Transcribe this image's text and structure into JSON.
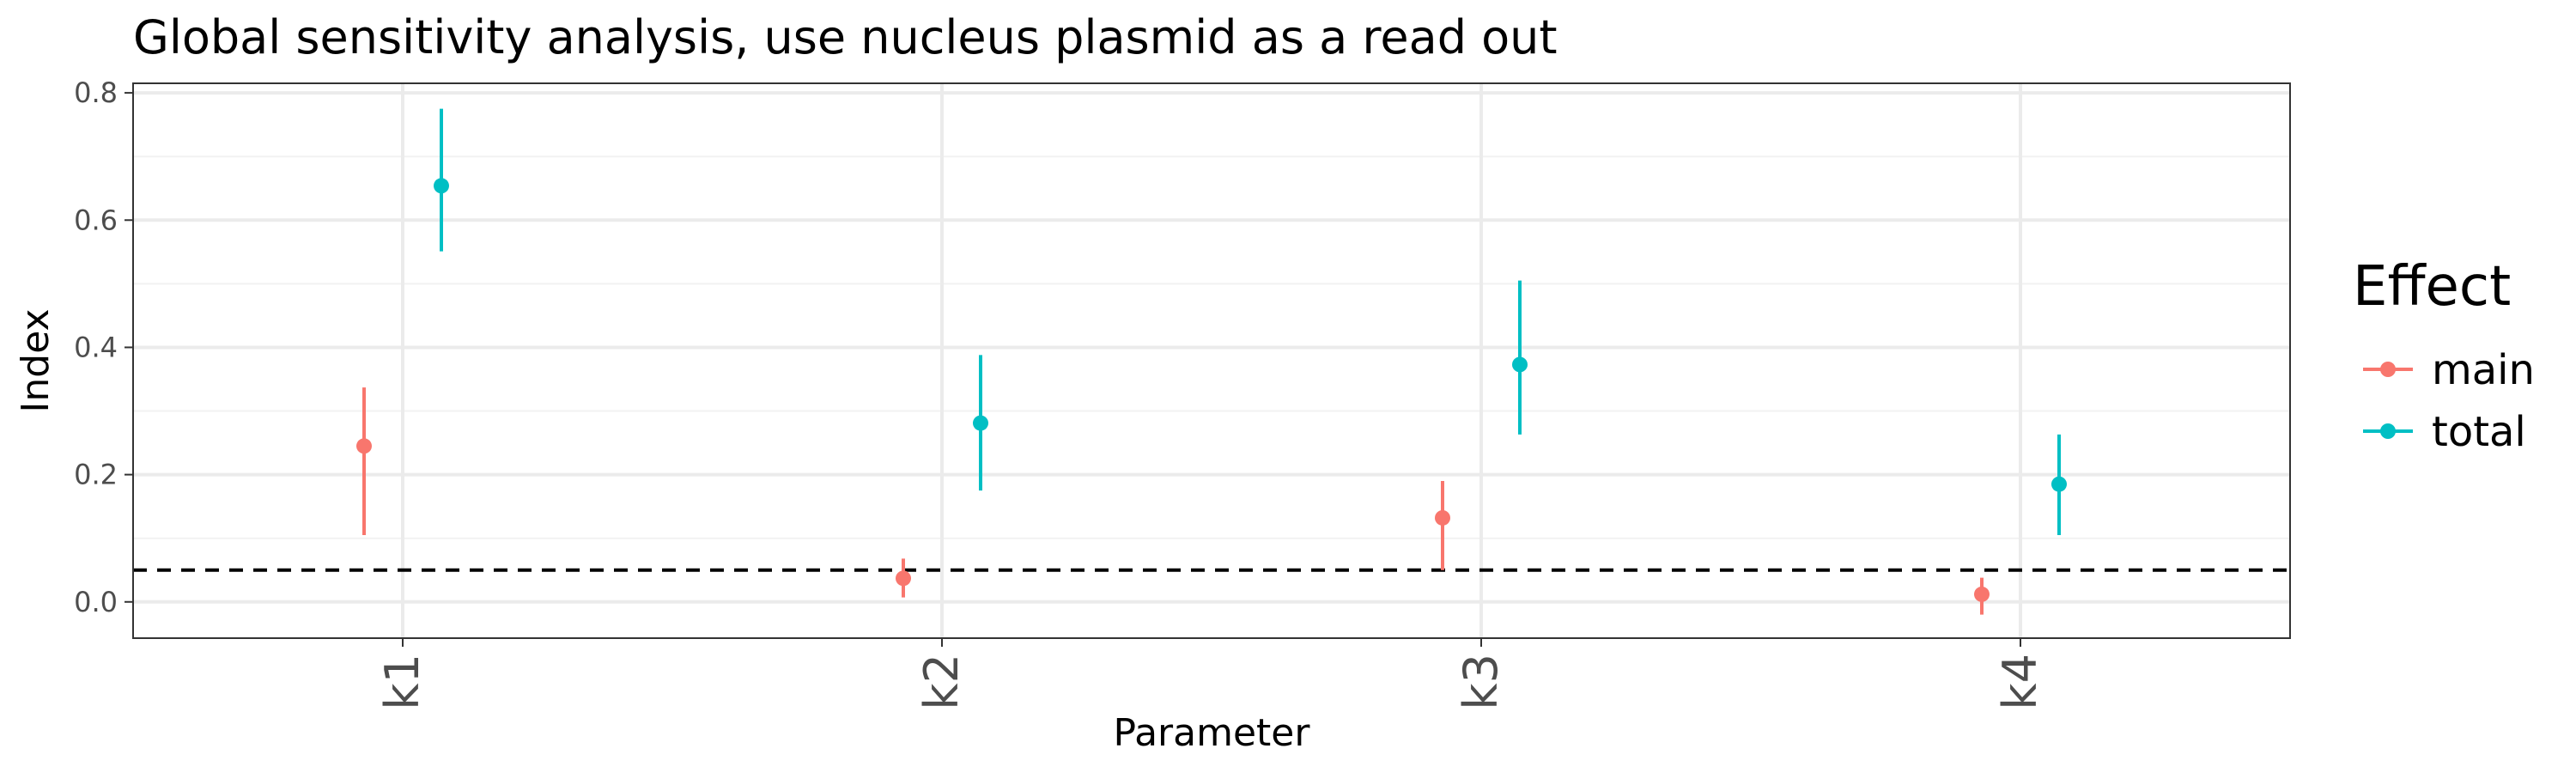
{
  "chart_data": {
    "type": "scatter",
    "title": "Global sensitivity analysis, use nucleus plasmid as a read out",
    "xlabel": "Parameter",
    "ylabel": "Index",
    "categories": [
      "k1",
      "k2",
      "k3",
      "k4"
    ],
    "yticks": [
      "0.0",
      "0.2",
      "0.4",
      "0.6",
      "0.8"
    ],
    "ylim": [
      -0.057,
      0.815
    ],
    "reference_line": {
      "y": 0.05,
      "style": "dashed"
    },
    "grid": true,
    "legend": {
      "title": "Effect",
      "position": "right"
    },
    "series": [
      {
        "name": "main",
        "color": "#F8766D",
        "values": [
          0.245,
          0.037,
          0.132,
          0.012
        ],
        "lower": [
          0.105,
          0.007,
          0.05,
          -0.02
        ],
        "upper": [
          0.337,
          0.068,
          0.19,
          0.038
        ]
      },
      {
        "name": "total",
        "color": "#00BFC4",
        "values": [
          0.654,
          0.281,
          0.373,
          0.185
        ],
        "lower": [
          0.551,
          0.175,
          0.263,
          0.105
        ],
        "upper": [
          0.775,
          0.388,
          0.505,
          0.263
        ]
      }
    ]
  }
}
